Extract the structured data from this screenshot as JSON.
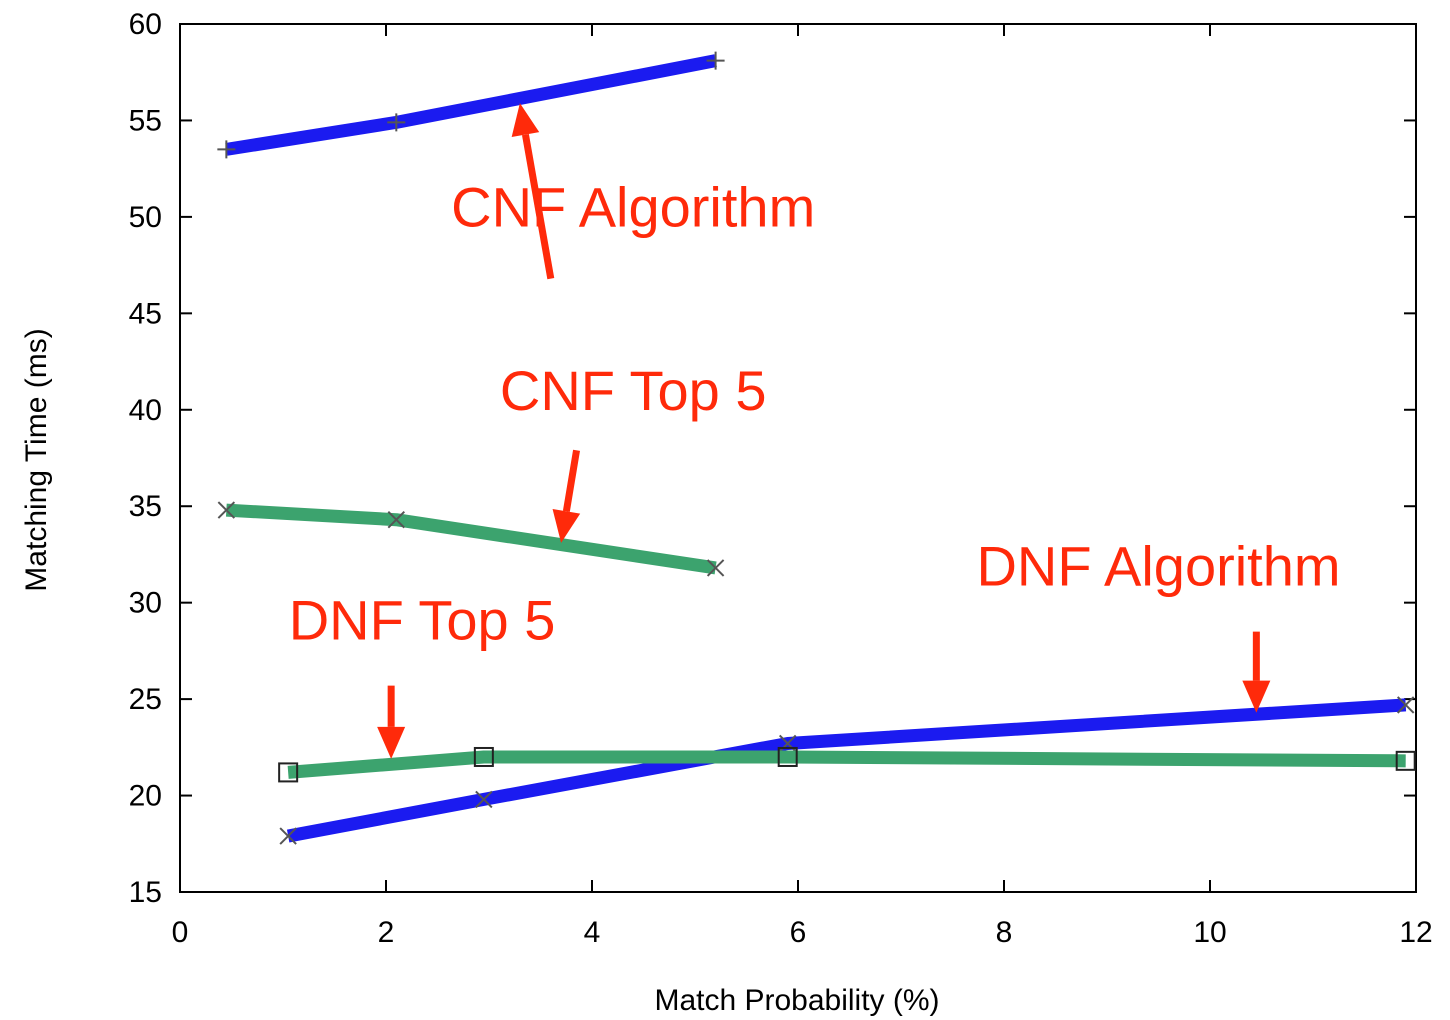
{
  "chart_data": {
    "type": "line",
    "xlabel": "Match Probability (%)",
    "ylabel": "Matching Time (ms)",
    "xlim": [
      0,
      12
    ],
    "ylim": [
      15,
      60
    ],
    "xticks": [
      "0",
      "2",
      "4",
      "6",
      "8",
      "10",
      "12"
    ],
    "yticks": [
      "15",
      "20",
      "25",
      "30",
      "35",
      "40",
      "45",
      "50",
      "55",
      "60"
    ],
    "grid": false,
    "legend": "none",
    "series": [
      {
        "color": "#1b1bf0",
        "marker": "plus",
        "x": [
          0.45,
          2.1,
          5.2
        ],
        "y": [
          53.5,
          54.9,
          58.1
        ]
      },
      {
        "color": "#3ca36e",
        "marker": "cross",
        "x": [
          0.45,
          2.1,
          5.2
        ],
        "y": [
          34.8,
          34.3,
          31.8
        ]
      },
      {
        "color": "#1b1bf0",
        "marker": "cross",
        "x": [
          1.05,
          2.95,
          5.9,
          11.9
        ],
        "y": [
          17.9,
          19.8,
          22.7,
          24.7
        ]
      },
      {
        "color": "#3ca36e",
        "marker": "square",
        "x": [
          1.05,
          2.95,
          5.9,
          11.9
        ],
        "y": [
          21.2,
          22.0,
          22.0,
          21.8
        ]
      }
    ],
    "annotations": [
      {
        "text": "CNF Algorithm",
        "x": 4.4,
        "y": 49.5,
        "arrow_from": [
          3.6,
          46.8
        ],
        "arrow_to": [
          3.3,
          55.9
        ]
      },
      {
        "text": "CNF Top 5",
        "x": 4.4,
        "y": 40.0,
        "arrow_from": [
          3.85,
          37.9
        ],
        "arrow_to": [
          3.7,
          33.1
        ]
      },
      {
        "text": "DNF Algorithm",
        "x": 9.5,
        "y": 30.9,
        "arrow_from": [
          10.45,
          28.5
        ],
        "arrow_to": [
          10.45,
          24.3
        ]
      },
      {
        "text": "DNF Top 5",
        "x": 2.35,
        "y": 28.1,
        "arrow_from": [
          2.05,
          25.7
        ],
        "arrow_to": [
          2.05,
          21.9
        ]
      }
    ],
    "annotation_color": "#ff2a0a"
  }
}
